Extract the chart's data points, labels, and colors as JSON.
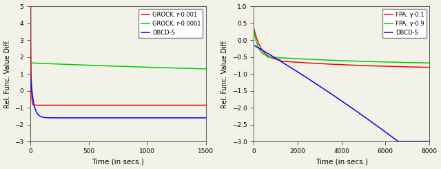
{
  "left": {
    "xlabel": "Time (in secs.)",
    "ylabel": "Rel. Func. Value Diff.",
    "xlim": [
      0,
      1500
    ],
    "ylim": [
      -3,
      5
    ],
    "yticks": [
      -3,
      -2,
      -1,
      0,
      1,
      2,
      3,
      4,
      5
    ],
    "xticks": [
      0,
      500,
      1000,
      1500
    ],
    "lines": [
      {
        "label": "GROCK, r-0.001",
        "color": "#ff0000"
      },
      {
        "label": "GROCK, r-0.0001",
        "color": "#00cc00"
      },
      {
        "label": "DBCD-S",
        "color": "#0000ff"
      }
    ]
  },
  "right": {
    "xlabel": "Time (in secs.)",
    "ylabel": "Rel. Func. Value Diff.",
    "xlim": [
      0,
      8000
    ],
    "ylim": [
      -3,
      1
    ],
    "yticks": [
      -3,
      -2.5,
      -2,
      -1.5,
      -1,
      -0.5,
      0,
      0.5,
      1
    ],
    "xticks": [
      0,
      2000,
      4000,
      6000,
      8000
    ],
    "lines": [
      {
        "label": "FPA, γ-0.1",
        "color": "#ff0000"
      },
      {
        "label": "FPA, γ-0.9",
        "color": "#00cc00"
      },
      {
        "label": "DBCD-S",
        "color": "#0000ff"
      }
    ]
  },
  "bg_color": "#f2f2e8",
  "linewidth": 1.1
}
